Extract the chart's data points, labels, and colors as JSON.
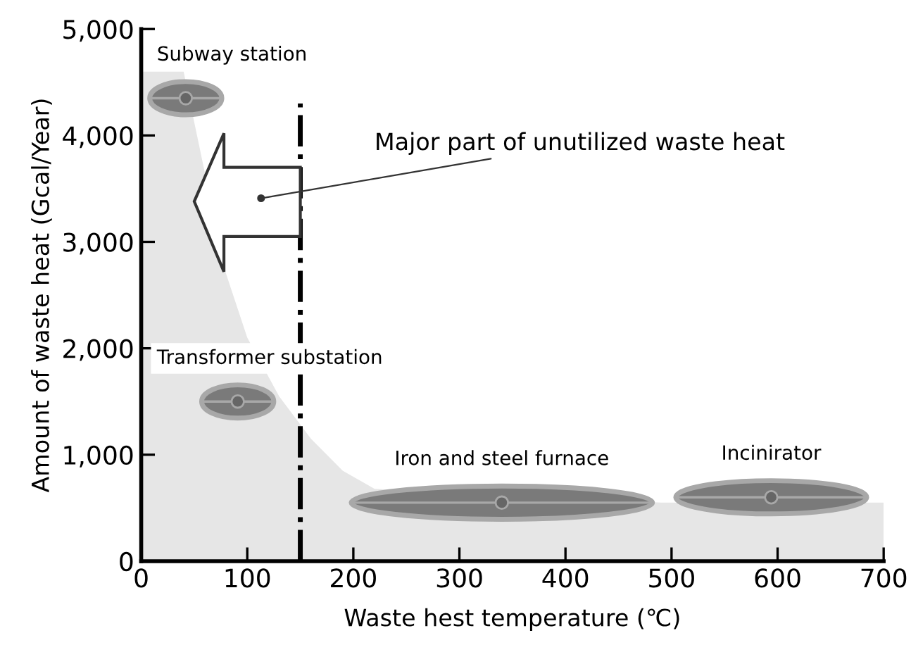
{
  "chart_data": {
    "type": "area",
    "xlabel": "Waste hest temperature (℃)",
    "ylabel": "Amount of waste heat (Gcal/Year)",
    "xlim": [
      0,
      700
    ],
    "ylim": [
      0,
      5000
    ],
    "xticks": [
      0,
      100,
      200,
      300,
      400,
      500,
      600,
      700
    ],
    "yticks": [
      0,
      {
        "value": 1000,
        "label": "1,000"
      },
      {
        "value": 2000,
        "label": "2,000"
      },
      {
        "value": 3000,
        "label": "3,000"
      },
      {
        "value": 4000,
        "label": "4,000"
      },
      {
        "value": 5000,
        "label": "5,000"
      }
    ],
    "series": [
      {
        "color": "#e6e6e6",
        "x": [
          0,
          40,
          80,
          100,
          130,
          160,
          190,
          220,
          490,
          700
        ],
        "values": [
          4600,
          4600,
          2700,
          2100,
          1550,
          1150,
          850,
          680,
          550,
          550
        ]
      },
      {
        "type": "scatter",
        "name": "Subway station",
        "color": "#666666",
        "x": [
          42
        ],
        "values": [
          4350
        ],
        "xerrors": [
          34
        ]
      },
      {
        "type": "scatter",
        "name": "Transformer substation",
        "color": "#666666",
        "x": [
          91
        ],
        "values": [
          1500
        ],
        "xerrors": [
          34
        ]
      },
      {
        "type": "scatter",
        "name": "Iron and steel furnace",
        "color": "#666666",
        "x": [
          340
        ],
        "values": [
          550
        ],
        "xerrors": [
          142
        ]
      },
      {
        "type": "scatter",
        "name": "Incinirator",
        "color": "#666666",
        "x": [
          594
        ],
        "values": [
          600
        ],
        "xerrors": [
          90
        ]
      }
    ],
    "ref_lines": [
      {
        "axis": "x",
        "value": 150,
        "color": "#000000",
        "line_style": "dashdot"
      }
    ],
    "annotations": [
      {
        "text": "Major part of unutilized waste heat",
        "x": 113,
        "y": 3410
      }
    ]
  }
}
